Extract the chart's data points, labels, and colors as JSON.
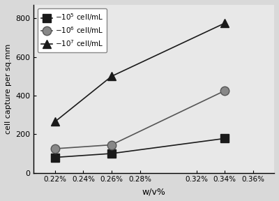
{
  "series": [
    {
      "label": "$-10^5$ cell/mL",
      "x": [
        0.22,
        0.26,
        0.34
      ],
      "y": [
        80,
        100,
        178
      ],
      "marker": "s",
      "color": "#1a1a1a",
      "markerfacecolor": "#1a1a1a",
      "markersize": 8,
      "linewidth": 1.2
    },
    {
      "label": "$-10^6$ cell/mL",
      "x": [
        0.22,
        0.26,
        0.34
      ],
      "y": [
        125,
        145,
        425
      ],
      "marker": "o",
      "color": "#555555",
      "markerfacecolor": "#888888",
      "markersize": 9,
      "linewidth": 1.2
    },
    {
      "label": "$-10^7$ cell/mL",
      "x": [
        0.22,
        0.26,
        0.34
      ],
      "y": [
        265,
        500,
        775
      ],
      "marker": "^",
      "color": "#1a1a1a",
      "markerfacecolor": "#1a1a1a",
      "markersize": 9,
      "linewidth": 1.2
    }
  ],
  "xlabel": "w/v%",
  "ylabel": "cell capture per sq.mm",
  "xlim": [
    0.205,
    0.375
  ],
  "ylim": [
    0,
    870
  ],
  "xticks": [
    0.22,
    0.24,
    0.26,
    0.28,
    0.32,
    0.34,
    0.36
  ],
  "xtick_labels": [
    "0.22%",
    "0.24%",
    "0.26%",
    "0.28%",
    "0.32%",
    "0.34%",
    "0.36%"
  ],
  "yticks": [
    0,
    200,
    400,
    600,
    800
  ],
  "background_color": "#d9d9d9",
  "plot_bg_color": "#e8e8e8",
  "legend_loc": "upper left"
}
